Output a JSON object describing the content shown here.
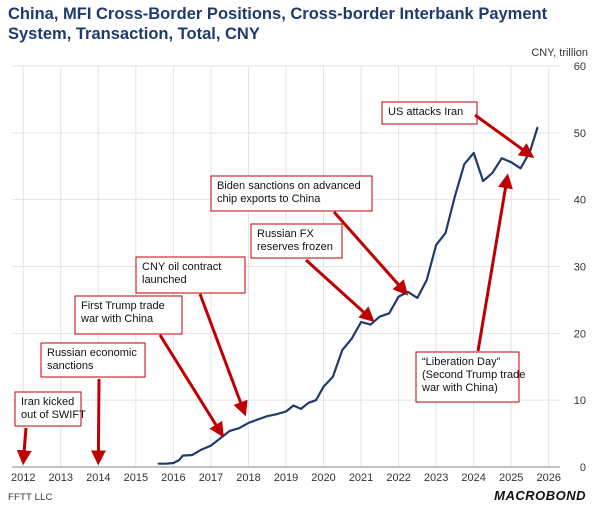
{
  "header": {
    "title": "China, MFI Cross-Border Positions, Cross-border Interbank Payment System, Transaction, Total, CNY"
  },
  "footer": {
    "source": "FFTT LLC",
    "brand": "MACROBOND"
  },
  "colors": {
    "line": "#1f3b6e",
    "annotation": "#c00000",
    "grid": "#e3e3e3",
    "title": "#1f3b6e"
  },
  "chart_data": {
    "type": "line",
    "title": "China, MFI Cross-Border Positions, Cross-border Interbank Payment System, Transaction, Total, CNY",
    "unit_label": "CNY, trillion",
    "y_axis_side": "right",
    "grid": true,
    "xlim": [
      2011.7,
      2026.3
    ],
    "ylim": [
      0,
      60
    ],
    "x_ticks": [
      2012,
      2013,
      2014,
      2015,
      2016,
      2017,
      2018,
      2019,
      2020,
      2021,
      2022,
      2023,
      2024,
      2025,
      2026
    ],
    "y_ticks": [
      0,
      10,
      20,
      30,
      40,
      50,
      60
    ],
    "series": [
      {
        "x": [
          2015.6,
          2015.8,
          2016.0,
          2016.15,
          2016.25,
          2016.5,
          2016.75,
          2017.0,
          2017.25,
          2017.5,
          2017.75,
          2018.0,
          2018.25,
          2018.5,
          2018.75,
          2019.0,
          2019.2,
          2019.4,
          2019.6,
          2019.8,
          2020.0,
          2020.25,
          2020.5,
          2020.75,
          2021.0,
          2021.25,
          2021.5,
          2021.75,
          2022.0,
          2022.25,
          2022.5,
          2022.75,
          2023.0,
          2023.25,
          2023.5,
          2023.75,
          2024.0,
          2024.25,
          2024.5,
          2024.75,
          2025.0,
          2025.25,
          2025.5,
          2025.7
        ],
        "values": [
          0.5,
          0.5,
          0.6,
          1.0,
          1.7,
          1.8,
          2.6,
          3.2,
          4.3,
          5.4,
          5.8,
          6.6,
          7.1,
          7.6,
          7.9,
          8.3,
          9.2,
          8.7,
          9.6,
          10.0,
          12.0,
          13.5,
          17.5,
          19.2,
          21.7,
          21.3,
          22.5,
          23.0,
          25.5,
          26.2,
          25.3,
          28.0,
          33.2,
          35.0,
          40.5,
          45.3,
          47.0,
          42.8,
          44.0,
          46.2,
          45.6,
          44.7,
          47.2,
          50.8
        ]
      }
    ],
    "annotations": [
      {
        "lines": [
          "Iran kicked",
          "out of SWIFT"
        ],
        "target": [
          2012.0,
          0.7
        ]
      },
      {
        "lines": [
          "Russian economic",
          "sanctions"
        ],
        "target": [
          2014.0,
          0.7
        ]
      },
      {
        "lines": [
          "First Trump trade",
          "war with China"
        ],
        "target": [
          2017.3,
          4.8
        ]
      },
      {
        "lines": [
          "CNY oil contract",
          "launched"
        ],
        "target": [
          2017.9,
          8.0
        ]
      },
      {
        "lines": [
          "Russian FX",
          "reserves frozen"
        ],
        "target": [
          2021.3,
          22.0
        ]
      },
      {
        "lines": [
          "Biden sanctions on advanced",
          "chip exports to China"
        ],
        "target": [
          2022.2,
          26.0
        ]
      },
      {
        "lines": [
          "US attacks Iran"
        ],
        "target": [
          2025.55,
          46.5
        ]
      },
      {
        "lines": [
          "“Liberation Day”",
          "(Second Trump trade",
          "war with China)"
        ],
        "target": [
          2024.9,
          43.5
        ]
      }
    ]
  }
}
